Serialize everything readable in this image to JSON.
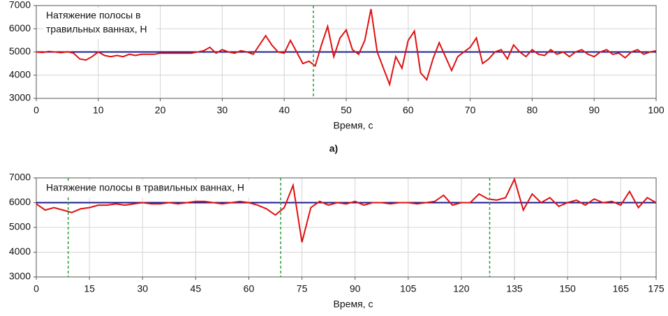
{
  "chart_data": [
    {
      "type": "line",
      "annotation": [
        "Натяжение полосы в",
        "травильных ваннах, Н"
      ],
      "xlabel": "Время, с",
      "caption": "а)",
      "xlim": [
        0,
        100
      ],
      "xticks": [
        0,
        10,
        20,
        30,
        40,
        50,
        60,
        70,
        80,
        90,
        100
      ],
      "ylim": [
        3000,
        7000
      ],
      "yticks": [
        3000,
        4000,
        5000,
        6000,
        7000
      ],
      "grid": true,
      "hlines": [
        {
          "value": 5000,
          "color": "#1b1b8f"
        }
      ],
      "vlines": [
        {
          "value": 44.7,
          "color": "#2e9a3a"
        }
      ],
      "x": [
        0,
        1,
        2,
        3,
        4,
        5,
        6,
        7,
        8,
        9,
        10,
        11,
        12,
        13,
        14,
        15,
        16,
        17,
        18,
        19,
        20,
        21,
        22,
        23,
        24,
        25,
        26,
        27,
        28,
        29,
        30,
        31,
        32,
        33,
        34,
        35,
        36,
        37,
        38,
        39,
        40,
        41,
        42,
        43,
        44,
        45,
        46,
        47,
        48,
        49,
        50,
        51,
        52,
        53,
        54,
        55,
        56,
        57,
        58,
        59,
        60,
        61,
        62,
        63,
        64,
        65,
        66,
        67,
        68,
        69,
        70,
        71,
        72,
        73,
        74,
        75,
        76,
        77,
        78,
        79,
        80,
        81,
        82,
        83,
        84,
        85,
        86,
        87,
        88,
        89,
        90,
        91,
        92,
        93,
        94,
        95,
        96,
        97,
        98,
        99,
        100
      ],
      "series": [
        {
          "color": "#e01010",
          "values": [
            5000,
            4980,
            5020,
            5000,
            4970,
            5010,
            4950,
            4700,
            4650,
            4800,
            5000,
            4850,
            4800,
            4850,
            4800,
            4900,
            4850,
            4900,
            4900,
            4900,
            4950,
            4950,
            4950,
            4950,
            4950,
            4950,
            5000,
            5050,
            5200,
            4950,
            5100,
            5000,
            4950,
            5050,
            5000,
            4900,
            5300,
            5700,
            5300,
            5000,
            4950,
            5500,
            5000,
            4500,
            4600,
            4400,
            5300,
            6100,
            4800,
            5600,
            5950,
            5100,
            4900,
            5500,
            6850,
            5000,
            4300,
            3600,
            4800,
            4300,
            5500,
            5900,
            4100,
            3800,
            4700,
            5400,
            4800,
            4200,
            4800,
            5000,
            5200,
            5600,
            4500,
            4700,
            5000,
            5100,
            4700,
            5300,
            5000,
            4800,
            5100,
            4900,
            4850,
            5100,
            4900,
            5000,
            4800,
            5000,
            5100,
            4900,
            4800,
            5000,
            5100,
            4900,
            4950,
            4750,
            5000,
            5100,
            4900,
            5000,
            5050
          ]
        }
      ]
    },
    {
      "type": "line",
      "annotation": [
        "Натяжение полосы в травильных ваннах, Н"
      ],
      "xlabel": "Время, с",
      "xlim": [
        0,
        175
      ],
      "xticks": [
        0,
        15,
        30,
        45,
        60,
        75,
        90,
        105,
        120,
        135,
        150,
        165,
        175
      ],
      "ylim": [
        3000,
        7000
      ],
      "yticks": [
        3000,
        4000,
        5000,
        6000,
        7000
      ],
      "grid": true,
      "hlines": [
        {
          "value": 6000,
          "color": "#1b1b8f"
        }
      ],
      "vlines": [
        {
          "value": 9,
          "color": "#2e9a3a"
        },
        {
          "value": 69,
          "color": "#2e9a3a"
        },
        {
          "value": 128,
          "color": "#2e9a3a"
        }
      ],
      "x": [
        0,
        2.5,
        5,
        7.5,
        10,
        12.5,
        15,
        17.5,
        20,
        22.5,
        25,
        27.5,
        30,
        32.5,
        35,
        37.5,
        40,
        42.5,
        45,
        47.5,
        50,
        52.5,
        55,
        57.5,
        60,
        62.5,
        65,
        67.5,
        70,
        72.5,
        75,
        77.5,
        80,
        82.5,
        85,
        87.5,
        90,
        92.5,
        95,
        97.5,
        100,
        102.5,
        105,
        107.5,
        110,
        112.5,
        115,
        117.5,
        120,
        122.5,
        125,
        127.5,
        130,
        132.5,
        135,
        137.5,
        140,
        142.5,
        145,
        147.5,
        150,
        152.5,
        155,
        157.5,
        160,
        162.5,
        165,
        167.5,
        170,
        172.5,
        175
      ],
      "series": [
        {
          "color": "#e01010",
          "values": [
            5950,
            5700,
            5800,
            5700,
            5600,
            5750,
            5800,
            5900,
            5900,
            5950,
            5900,
            5950,
            6000,
            5950,
            5950,
            6000,
            5950,
            6000,
            6050,
            6050,
            6000,
            5950,
            6000,
            6050,
            6000,
            5900,
            5750,
            5500,
            5800,
            6700,
            4400,
            5800,
            6050,
            5900,
            6000,
            5950,
            6050,
            5900,
            6000,
            6000,
            5950,
            6000,
            6000,
            5950,
            6000,
            6050,
            6300,
            5900,
            6000,
            6000,
            6350,
            6150,
            6100,
            6200,
            6950,
            5700,
            6350,
            6000,
            6200,
            5850,
            6000,
            6100,
            5900,
            6150,
            6000,
            6050,
            5900,
            6450,
            5800,
            6200,
            6000
          ]
        }
      ]
    }
  ]
}
